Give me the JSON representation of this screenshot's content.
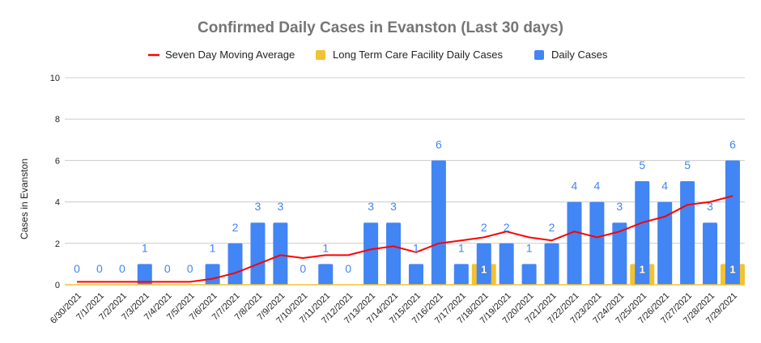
{
  "chart_data": {
    "type": "bar",
    "title": "Confirmed Daily Cases in Evanston (Last 30 days)",
    "xlabel": "",
    "ylabel": "Cases in Evanston",
    "ylim": [
      0,
      10
    ],
    "yticks": [
      0,
      2,
      4,
      6,
      8,
      10
    ],
    "grid": true,
    "legend_placement": "top",
    "categories": [
      "6/30/2021",
      "7/1/2021",
      "7/2/2021",
      "7/3/2021",
      "7/4/2021",
      "7/5/2021",
      "7/6/2021",
      "7/7/2021",
      "7/8/2021",
      "7/9/2021",
      "7/10/2021",
      "7/11/2021",
      "7/12/2021",
      "7/13/2021",
      "7/14/2021",
      "7/15/2021",
      "7/16/2021",
      "7/17/2021",
      "7/18/2021",
      "7/19/2021",
      "7/20/2021",
      "7/21/2021",
      "7/22/2021",
      "7/23/2021",
      "7/24/2021",
      "7/25/2021",
      "7/26/2021",
      "7/27/2021",
      "7/28/2021",
      "7/29/2021"
    ],
    "series": [
      {
        "name": "Seven Day Moving Average",
        "type": "line",
        "color": "#ff0000",
        "values": [
          0.14,
          0.14,
          0.14,
          0.14,
          0.14,
          0.14,
          0.29,
          0.57,
          1.0,
          1.43,
          1.29,
          1.43,
          1.43,
          1.71,
          1.86,
          1.57,
          2.0,
          2.14,
          2.29,
          2.57,
          2.29,
          2.14,
          2.57,
          2.29,
          2.57,
          3.0,
          3.29,
          3.86,
          4.0,
          4.29
        ]
      },
      {
        "name": "Long Term Care Facility Daily Cases",
        "type": "bar",
        "color": "#f1c232",
        "values": [
          0,
          0,
          0,
          0,
          0,
          0,
          0,
          0,
          0,
          0,
          0,
          0,
          0,
          0,
          0,
          0,
          0,
          0,
          1,
          0,
          0,
          0,
          0,
          0,
          0,
          1,
          0,
          0,
          0,
          1
        ]
      },
      {
        "name": "Daily Cases",
        "type": "bar",
        "color": "#4285f4",
        "values": [
          0,
          0,
          0,
          1,
          0,
          0,
          1,
          2,
          3,
          3,
          0,
          1,
          0,
          3,
          3,
          1,
          6,
          1,
          2,
          2,
          1,
          2,
          4,
          4,
          3,
          5,
          4,
          5,
          3,
          6
        ]
      }
    ]
  }
}
